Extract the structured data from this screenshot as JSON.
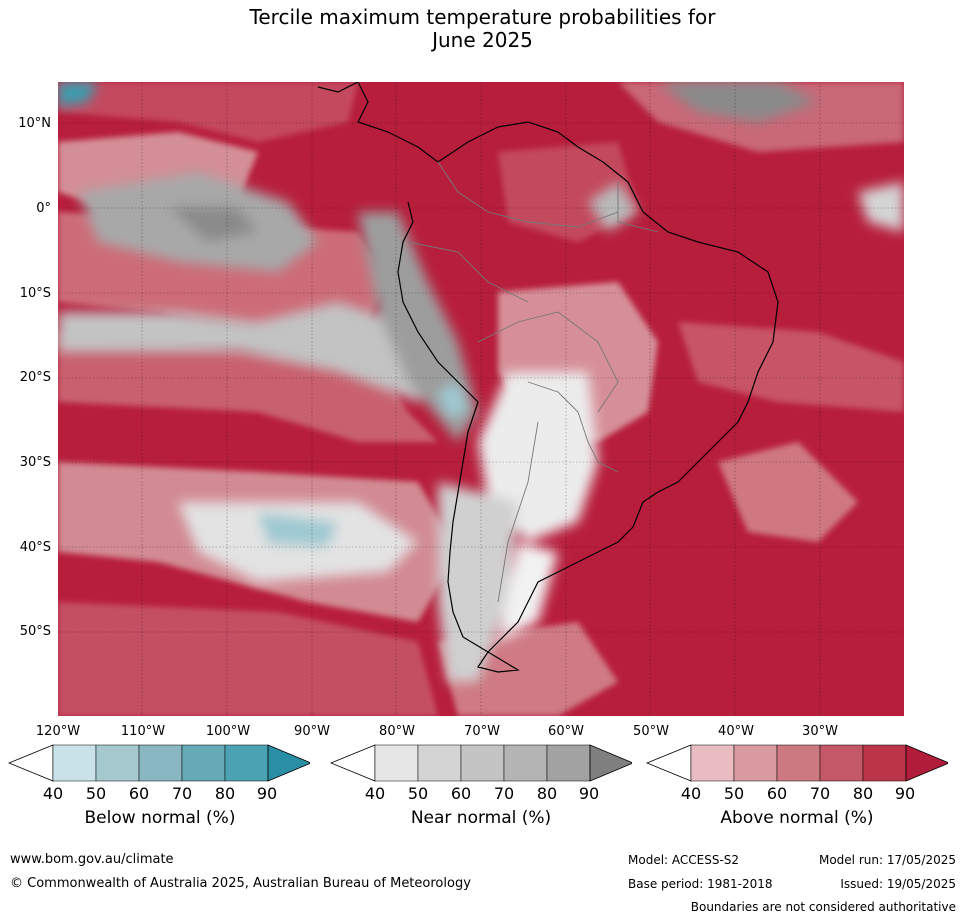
{
  "title_line1": "Tercile maximum temperature probabilities for",
  "title_line2": "June 2025",
  "lat_labels": [
    "10°N",
    "0°",
    "10°S",
    "20°S",
    "30°S",
    "40°S",
    "50°S"
  ],
  "lon_labels": [
    "120°W",
    "110°W",
    "100°W",
    "90°W",
    "80°W",
    "70°W",
    "60°W",
    "50°W",
    "40°W",
    "30°W"
  ],
  "colorbars": [
    {
      "title": "Below normal (%)",
      "ticks": [
        "40",
        "50",
        "60",
        "70",
        "80",
        "90"
      ],
      "colors": [
        "#ffffff",
        "#c9e2e8",
        "#a6c8cf",
        "#89b7c1",
        "#66a9b7",
        "#4aa2b3",
        "#2a8ea4"
      ]
    },
    {
      "title": "Near normal (%)",
      "ticks": [
        "40",
        "50",
        "60",
        "70",
        "80",
        "90"
      ],
      "colors": [
        "#ffffff",
        "#e6e6e6",
        "#d4d4d4",
        "#c4c4c4",
        "#b4b4b4",
        "#a2a2a2",
        "#7f7f7f"
      ]
    },
    {
      "title": "Above normal (%)",
      "ticks": [
        "40",
        "50",
        "60",
        "70",
        "80",
        "90"
      ],
      "colors": [
        "#ffffff",
        "#e8bcc1",
        "#d99aa1",
        "#cd7982",
        "#c45866",
        "#bb3448",
        "#b01c3a"
      ]
    }
  ],
  "footer": {
    "website": "www.bom.gov.au/climate",
    "copyright": "© Commonwealth of Australia 2025, Australian Bureau of Meteorology",
    "model": "Model: ACCESS-S2",
    "model_run": "Model run: 17/05/2025",
    "base_period": "Base period: 1981-2018",
    "issued": "Issued: 19/05/2025",
    "disclaimer": "Boundaries are not considered authoritative"
  }
}
